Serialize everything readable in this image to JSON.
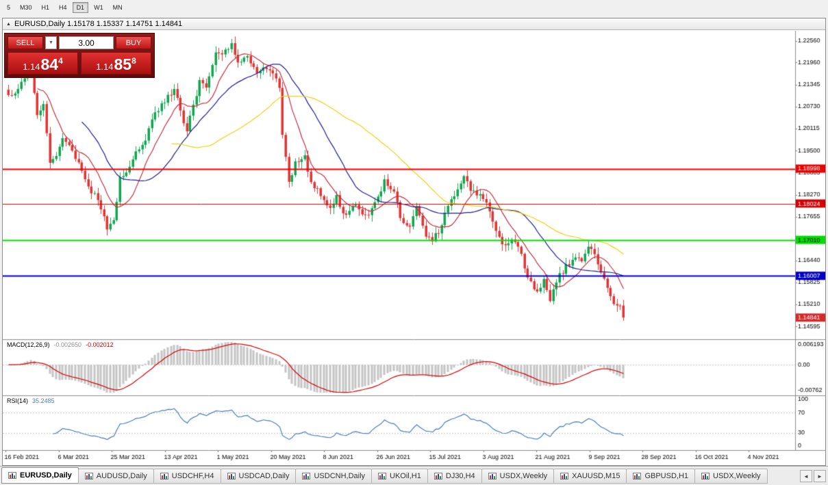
{
  "icons": {
    "window_triangle": "▲",
    "dropdown": "▼",
    "tab_prev": "◄",
    "tab_next": "►"
  },
  "toolbar": {
    "timeframes": [
      {
        "label": "5"
      },
      {
        "label": "M30"
      },
      {
        "label": "H1"
      },
      {
        "label": "H4"
      },
      {
        "label": "D1",
        "active": true
      },
      {
        "label": "W1"
      },
      {
        "label": "MN"
      }
    ]
  },
  "chart_header": {
    "title": "EURUSD,Daily 1.15178 1.15337 1.14751 1.14841"
  },
  "trade_panel": {
    "sell_label": "SELL",
    "buy_label": "BUY",
    "lot_value": "3.00",
    "bid_main": "1.14",
    "bid_pips": "84",
    "bid_frac": "4",
    "ask_main": "1.14",
    "ask_pips": "85",
    "ask_frac": "8"
  },
  "macd_panel": {
    "label": "MACD(12,26,9)",
    "value_main": "-0.002650",
    "value_signal": "-0.002012",
    "axis_top": "0.006193",
    "axis_zero": "0.00",
    "axis_bottom": "-0.00762"
  },
  "rsi_panel": {
    "label": "RSI(14)",
    "value": "35.2485",
    "axis": [
      100,
      70,
      30,
      0
    ],
    "levels": [
      70,
      30
    ]
  },
  "chart_data": {
    "type": "candlestick",
    "symbol": "EURUSD",
    "timeframe": "Daily",
    "current_ohlc": {
      "open": 1.15178,
      "high": 1.15337,
      "low": 1.14751,
      "close": 1.14841
    },
    "current_price_label": "1.14841",
    "ylim": [
      1.1435,
      1.2273
    ],
    "y_ticks": [
      1.2256,
      1.2196,
      1.21345,
      1.2073,
      1.20115,
      1.195,
      1.18885,
      1.1827,
      1.17655,
      1.1644,
      1.15825,
      1.1521,
      1.14595
    ],
    "h_lines": [
      {
        "price": 1.18998,
        "label": "1.18998",
        "color": "#ee0000",
        "text_color": "#ffffff",
        "width": 2
      },
      {
        "price": 1.18024,
        "label": "1.18024",
        "color": "#d40000",
        "text_color": "#ffffff",
        "width": 1
      },
      {
        "price": 1.1701,
        "label": "1.17010",
        "color": "#00dd00",
        "text_color": "#000000",
        "width": 2
      },
      {
        "price": 1.16007,
        "label": "1.16007",
        "color": "#0000cc",
        "text_color": "#ffffff",
        "width": 2
      }
    ],
    "num_candles": 194,
    "candle_area_fraction": 0.785,
    "close_anchors": [
      [
        0,
        1.2105
      ],
      [
        3,
        1.2122
      ],
      [
        6,
        1.2162
      ],
      [
        7,
        1.2176
      ],
      [
        9,
        1.2049
      ],
      [
        11,
        1.208
      ],
      [
        13,
        1.1916
      ],
      [
        15,
        1.1935
      ],
      [
        17,
        1.1985
      ],
      [
        20,
        1.195
      ],
      [
        22,
        1.1917
      ],
      [
        25,
        1.185
      ],
      [
        28,
        1.1812
      ],
      [
        31,
        1.173
      ],
      [
        33,
        1.1756
      ],
      [
        35,
        1.1876
      ],
      [
        38,
        1.1905
      ],
      [
        40,
        1.1948
      ],
      [
        43,
        1.1978
      ],
      [
        45,
        1.2037
      ],
      [
        48,
        1.2082
      ],
      [
        52,
        1.2122
      ],
      [
        54,
        1.2062
      ],
      [
        56,
        1.2004
      ],
      [
        58,
        1.2078
      ],
      [
        60,
        1.2147
      ],
      [
        62,
        1.2126
      ],
      [
        65,
        1.2224
      ],
      [
        68,
        1.2232
      ],
      [
        70,
        1.225
      ],
      [
        72,
        1.2196
      ],
      [
        75,
        1.2214
      ],
      [
        78,
        1.2166
      ],
      [
        80,
        1.2182
      ],
      [
        82,
        1.2174
      ],
      [
        85,
        1.2125
      ],
      [
        86,
        1.1994
      ],
      [
        88,
        1.1863
      ],
      [
        90,
        1.192
      ],
      [
        93,
        1.1937
      ],
      [
        95,
        1.1862
      ],
      [
        97,
        1.1845
      ],
      [
        99,
        1.1812
      ],
      [
        101,
        1.179
      ],
      [
        103,
        1.1826
      ],
      [
        105,
        1.1775
      ],
      [
        107,
        1.1782
      ],
      [
        109,
        1.1799
      ],
      [
        111,
        1.1772
      ],
      [
        113,
        1.177
      ],
      [
        116,
        1.1822
      ],
      [
        118,
        1.187
      ],
      [
        121,
        1.1836
      ],
      [
        123,
        1.1762
      ],
      [
        126,
        1.1738
      ],
      [
        128,
        1.1795
      ],
      [
        131,
        1.171
      ],
      [
        133,
        1.1697
      ],
      [
        136,
        1.1742
      ],
      [
        138,
        1.1796
      ],
      [
        141,
        1.1842
      ],
      [
        143,
        1.1879
      ],
      [
        145,
        1.1838
      ],
      [
        147,
        1.1825
      ],
      [
        150,
        1.1805
      ],
      [
        153,
        1.1726
      ],
      [
        156,
        1.1686
      ],
      [
        158,
        1.1702
      ],
      [
        160,
        1.1682
      ],
      [
        163,
        1.1596
      ],
      [
        166,
        1.1557
      ],
      [
        168,
        1.1592
      ],
      [
        170,
        1.153
      ],
      [
        172,
        1.1582
      ],
      [
        175,
        1.1633
      ],
      [
        178,
        1.1652
      ],
      [
        180,
        1.1641
      ],
      [
        182,
        1.1682
      ],
      [
        184,
        1.1661
      ],
      [
        186,
        1.161
      ],
      [
        188,
        1.1567
      ],
      [
        190,
        1.1522
      ],
      [
        192,
        1.15178
      ],
      [
        193,
        1.14841
      ]
    ],
    "ma_lines": [
      {
        "period": 10,
        "color": "#c23040",
        "name": "MA fast (red)"
      },
      {
        "period": 24,
        "color": "#1c1c90",
        "name": "MA mid (dark blue)"
      },
      {
        "period": 52,
        "color": "#f0d014",
        "name": "MA slow (yellow)"
      }
    ],
    "indicators": {
      "macd": {
        "fast": 12,
        "slow": 26,
        "signal": 9,
        "ylim": [
          -0.00762,
          0.006193
        ]
      },
      "rsi": {
        "period": 14,
        "ylim": [
          0,
          100
        ]
      }
    },
    "colors": {
      "up": "#0fa650",
      "down": "#e23434",
      "macd_hist": "#c4c4c4",
      "macd_signal": "#d40000",
      "rsi_line": "#4a7ebb",
      "axis_line": "#8a8a8a",
      "current_label_bg": "#d42a2a"
    },
    "x_labels": [
      "16 Feb 2021",
      "6 Mar 2021",
      "25 Mar 2021",
      "13 Apr 2021",
      "1 May 2021",
      "20 May 2021",
      "8 Jun 2021",
      "26 Jun 2021",
      "15 Jul 2021",
      "3 Aug 2021",
      "21 Aug 2021",
      "9 Sep 2021",
      "28 Sep 2021",
      "16 Oct 2021",
      "4 Nov 2021"
    ]
  },
  "tabs": [
    {
      "label": "EURUSD,Daily",
      "active": true
    },
    {
      "label": "AUDUSD,Daily"
    },
    {
      "label": "USDCHF,H4"
    },
    {
      "label": "USDCAD,Daily"
    },
    {
      "label": "USDCNH,Daily"
    },
    {
      "label": "UKOil,H1"
    },
    {
      "label": "DJ30,H4"
    },
    {
      "label": "USDX,Weekly"
    },
    {
      "label": "XAUUSD,M15"
    },
    {
      "label": "GBPUSD,H1"
    },
    {
      "label": "USDX,Weekly"
    }
  ]
}
